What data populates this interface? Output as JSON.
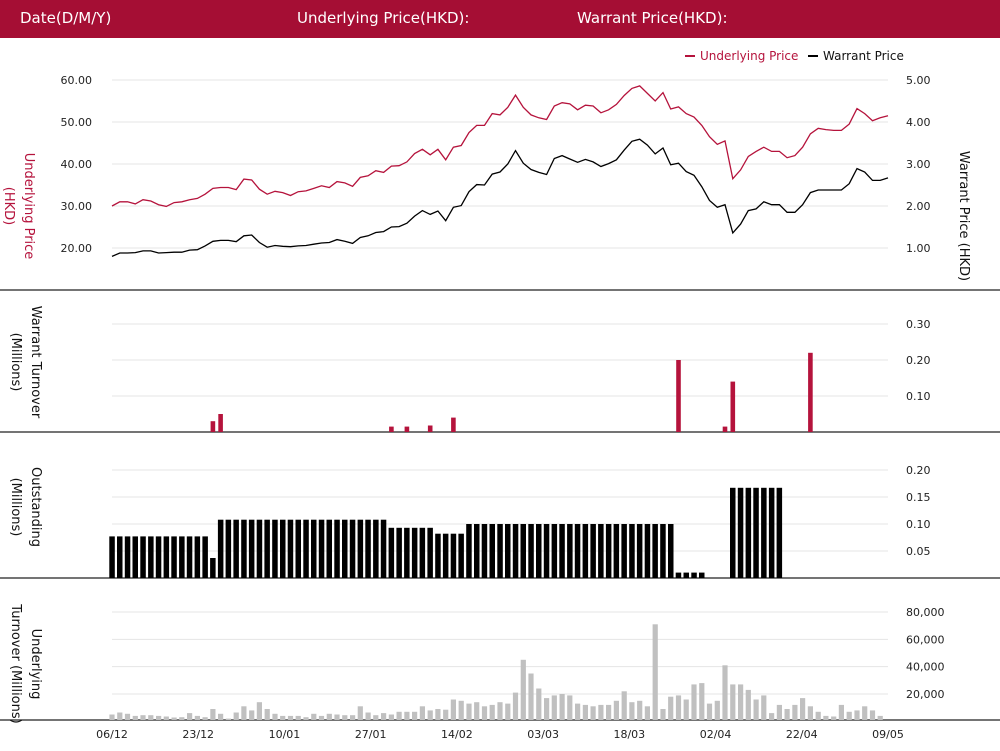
{
  "header": {
    "date_label": "Date(D/M/Y)",
    "underlying_label": "Underlying Price(HKD):",
    "warrant_label": "Warrant Price(HKD):"
  },
  "colors": {
    "header_bg": "#a50e34",
    "underlying": "#b5133c",
    "warrant": "#000000",
    "warrant_turnover": "#b5133c",
    "outstanding": "#000000",
    "underlying_turnover": "#c0c0c0",
    "grid": "#e4e4e4"
  },
  "chart_data": [
    {
      "type": "line",
      "legend": [
        "Underlying Price",
        "Warrant Price"
      ],
      "legend_position": "top-right",
      "ylabel_left": "Underlying Price (HKD)",
      "ylabel_right": "Warrant  Price (HKD)",
      "yticks_left": [
        "60.00",
        "50.00",
        "40.00",
        "30.00",
        "20.00"
      ],
      "yticks_right": [
        "5.00",
        "4.00",
        "3.00",
        "2.00",
        "1.00"
      ],
      "ylim_left": [
        15,
        65
      ],
      "ylim_right": [
        0.58,
        5.58
      ],
      "grid": true,
      "series": [
        {
          "name": "Underlying Price",
          "axis": "left",
          "values": [
            30.0,
            31.0,
            31.0,
            30.5,
            31.5,
            31.2,
            30.3,
            29.9,
            30.8,
            31.0,
            31.5,
            31.8,
            32.8,
            34.2,
            34.4,
            34.4,
            33.9,
            36.4,
            36.2,
            34.0,
            32.8,
            33.5,
            33.2,
            32.5,
            33.4,
            33.6,
            34.2,
            34.8,
            34.4,
            35.8,
            35.5,
            34.7,
            36.8,
            37.2,
            38.4,
            38.0,
            39.5,
            39.6,
            40.5,
            42.5,
            43.5,
            42.2,
            43.5,
            41.0,
            44.0,
            44.4,
            47.5,
            49.2,
            49.2,
            52.0,
            51.7,
            53.5,
            56.4,
            53.5,
            51.7,
            51.0,
            50.6,
            53.8,
            54.6,
            54.3,
            52.9,
            54.0,
            53.8,
            52.2,
            52.9,
            54.2,
            56.3,
            58.0,
            58.6,
            56.8,
            55.0,
            57.0,
            53.1,
            53.6,
            52.0,
            51.2,
            49.2,
            46.5,
            44.7,
            45.5,
            36.5,
            38.6,
            41.8,
            43.0,
            44.0,
            43.0,
            43.0,
            41.5,
            42.0,
            44.0,
            47.2,
            48.5,
            48.2,
            48.0,
            48.0,
            49.5,
            53.2,
            52.0,
            50.3,
            51.0,
            51.5
          ]
        },
        {
          "name": "Warrant Price",
          "axis": "right",
          "values": [
            0.8,
            0.88,
            0.88,
            0.89,
            0.93,
            0.93,
            0.88,
            0.89,
            0.9,
            0.9,
            0.95,
            0.96,
            1.05,
            1.16,
            1.18,
            1.18,
            1.15,
            1.29,
            1.31,
            1.13,
            1.02,
            1.06,
            1.04,
            1.03,
            1.05,
            1.06,
            1.09,
            1.12,
            1.13,
            1.2,
            1.16,
            1.11,
            1.25,
            1.29,
            1.37,
            1.39,
            1.5,
            1.51,
            1.59,
            1.76,
            1.89,
            1.8,
            1.88,
            1.65,
            1.97,
            2.01,
            2.34,
            2.51,
            2.5,
            2.76,
            2.81,
            3.0,
            3.32,
            3.02,
            2.87,
            2.8,
            2.75,
            3.13,
            3.2,
            3.12,
            3.04,
            3.11,
            3.05,
            2.94,
            3.01,
            3.1,
            3.33,
            3.54,
            3.59,
            3.45,
            3.24,
            3.38,
            2.98,
            3.02,
            2.82,
            2.73,
            2.46,
            2.13,
            1.97,
            2.03,
            1.36,
            1.57,
            1.89,
            1.93,
            2.1,
            2.03,
            2.03,
            1.85,
            1.85,
            2.03,
            2.32,
            2.38,
            2.38,
            2.38,
            2.38,
            2.53,
            2.89,
            2.81,
            2.61,
            2.61,
            2.67
          ]
        }
      ]
    },
    {
      "type": "bar",
      "ylabel": "Warrant  Turnover (Millions)",
      "yticks": [
        "0.30",
        "0.20",
        "0.10"
      ],
      "ylim": [
        0,
        0.35
      ],
      "grid": true,
      "series": [
        {
          "values": [
            0,
            0,
            0,
            0,
            0,
            0,
            0,
            0,
            0,
            0,
            0,
            0,
            0,
            0.03,
            0.05,
            0,
            0,
            0,
            0,
            0,
            0,
            0,
            0,
            0,
            0,
            0,
            0,
            0,
            0,
            0,
            0,
            0,
            0,
            0,
            0,
            0,
            0.015,
            0,
            0.015,
            0,
            0,
            0.018,
            0,
            0,
            0.04,
            0,
            0,
            0,
            0,
            0,
            0,
            0,
            0,
            0,
            0,
            0,
            0,
            0,
            0,
            0,
            0,
            0,
            0,
            0,
            0,
            0,
            0,
            0,
            0,
            0,
            0,
            0,
            0,
            0.2,
            0,
            0,
            0,
            0,
            0,
            0.015,
            0.14,
            0,
            0,
            0,
            0,
            0,
            0,
            0,
            0,
            0,
            0.22,
            0,
            0,
            0,
            0,
            0,
            0,
            0,
            0,
            0,
            0
          ]
        }
      ]
    },
    {
      "type": "bar",
      "ylabel": "Outstanding (Millions)",
      "yticks": [
        "0.20",
        "0.15",
        "0.10",
        "0.05"
      ],
      "ylim": [
        0,
        0.25
      ],
      "grid": true,
      "series": [
        {
          "values": [
            0.077,
            0.077,
            0.077,
            0.077,
            0.077,
            0.077,
            0.077,
            0.077,
            0.077,
            0.077,
            0.077,
            0.077,
            0.077,
            0.037,
            0.108,
            0.108,
            0.108,
            0.108,
            0.108,
            0.108,
            0.108,
            0.108,
            0.108,
            0.108,
            0.108,
            0.108,
            0.108,
            0.108,
            0.108,
            0.108,
            0.108,
            0.108,
            0.108,
            0.108,
            0.108,
            0.108,
            0.093,
            0.093,
            0.093,
            0.093,
            0.093,
            0.093,
            0.082,
            0.082,
            0.082,
            0.082,
            0.1,
            0.1,
            0.1,
            0.1,
            0.1,
            0.1,
            0.1,
            0.1,
            0.1,
            0.1,
            0.1,
            0.1,
            0.1,
            0.1,
            0.1,
            0.1,
            0.1,
            0.1,
            0.1,
            0.1,
            0.1,
            0.1,
            0.1,
            0.1,
            0.1,
            0.1,
            0.1,
            0.01,
            0.01,
            0.01,
            0.01,
            0,
            0,
            0,
            0.167,
            0.167,
            0.167,
            0.167,
            0.167,
            0.167,
            0.167,
            0,
            0,
            0,
            0,
            0,
            0,
            0,
            0,
            0,
            0,
            0,
            0,
            0,
            0
          ]
        }
      ]
    },
    {
      "type": "bar",
      "ylabel": "Underlying Turnover (Millions)",
      "yticks": [
        "80,000",
        "60,000",
        "40,000",
        "20,000"
      ],
      "ylim": [
        0,
        90000
      ],
      "grid": true,
      "series": [
        {
          "values": [
            5000,
            6500,
            5500,
            4000,
            4500,
            4500,
            4000,
            3500,
            2800,
            3000,
            6000,
            4000,
            3000,
            9000,
            5500,
            2000,
            6500,
            11000,
            8000,
            14000,
            9000,
            5500,
            4000,
            4000,
            4000,
            3000,
            5500,
            4000,
            5500,
            5000,
            4500,
            4500,
            11000,
            6500,
            4500,
            6000,
            5000,
            7000,
            7000,
            7000,
            11000,
            8000,
            9000,
            8500,
            16000,
            15000,
            13000,
            14000,
            11000,
            12000,
            14000,
            13000,
            21000,
            45000,
            35000,
            24000,
            17000,
            19000,
            20000,
            19000,
            13000,
            12000,
            11000,
            12000,
            12000,
            15000,
            22000,
            14000,
            15000,
            11000,
            71000,
            9000,
            18000,
            19000,
            16000,
            27000,
            28000,
            13000,
            15000,
            41000,
            27000,
            27000,
            23000,
            16000,
            19000,
            6000,
            12000,
            9000,
            12000,
            17000,
            11000,
            7000,
            4000,
            3500,
            12000,
            7000,
            8000,
            11000,
            8000,
            4000,
            0
          ]
        }
      ]
    },
    {
      "type": "axis",
      "xticks": [
        "06/12",
        "23/12",
        "10/01",
        "27/01",
        "14/02",
        "03/03",
        "18/03",
        "02/04",
        "22/04",
        "09/05"
      ]
    }
  ]
}
